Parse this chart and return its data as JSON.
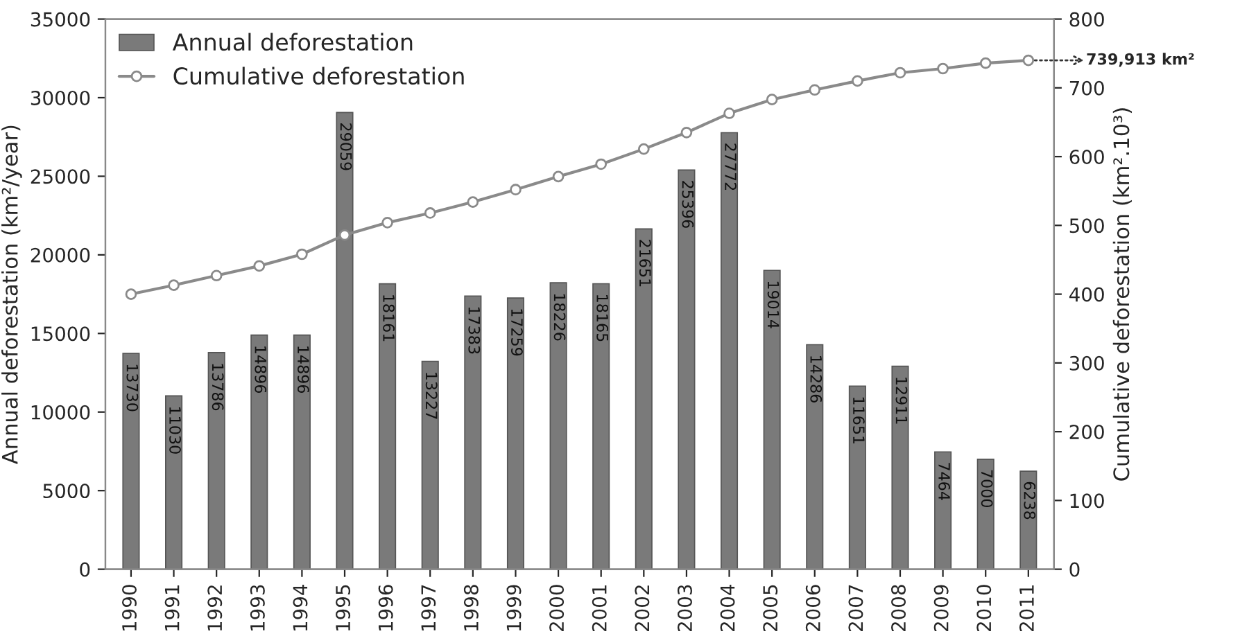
{
  "chart_data": {
    "type": "bar",
    "categories": [
      "1990",
      "1991",
      "1992",
      "1993",
      "1994",
      "1995",
      "1996",
      "1997",
      "1998",
      "1999",
      "2000",
      "2001",
      "2002",
      "2003",
      "2004",
      "2005",
      "2006",
      "2007",
      "2008",
      "2009",
      "2010",
      "2011"
    ],
    "series": [
      {
        "name": "Annual deforestation",
        "color": "#7a7a7a",
        "values": [
          13730,
          11030,
          13786,
          14896,
          14896,
          29059,
          18161,
          13227,
          17383,
          17259,
          18226,
          18165,
          21651,
          25396,
          27772,
          19014,
          14286,
          11651,
          12911,
          7464,
          7000,
          6238
        ],
        "value_labels": [
          "13730",
          "11030",
          "13786",
          "14896",
          "14896",
          "29059",
          "18161",
          "13227",
          "17383",
          "17259",
          "18226",
          "18165",
          "21651",
          "25396",
          "27772",
          "19014",
          "14286",
          "11651",
          "12911",
          "7464",
          "7000",
          "6238"
        ]
      },
      {
        "name": "Cumulative deforestation",
        "type": "line",
        "axis": "y2",
        "color": "#8a8a8a",
        "marker": "circle",
        "values": [
          400,
          413,
          427,
          441,
          458,
          486,
          504,
          518,
          534,
          552,
          571,
          589,
          611,
          635,
          663,
          683,
          697,
          710,
          722,
          728,
          736,
          740
        ]
      }
    ],
    "ylabel": "Annual deforestation (km²/year)",
    "y2label": "Cumulative deforestation (km².10³)",
    "ylim": [
      0,
      35000
    ],
    "yticks": [
      0,
      5000,
      10000,
      15000,
      20000,
      25000,
      30000,
      35000
    ],
    "y2lim": [
      0,
      800
    ],
    "y2ticks": [
      0,
      100,
      200,
      300,
      400,
      500,
      600,
      700,
      800
    ],
    "annotations": [
      "739,913 km²"
    ],
    "legend": "top left",
    "grid": false
  }
}
